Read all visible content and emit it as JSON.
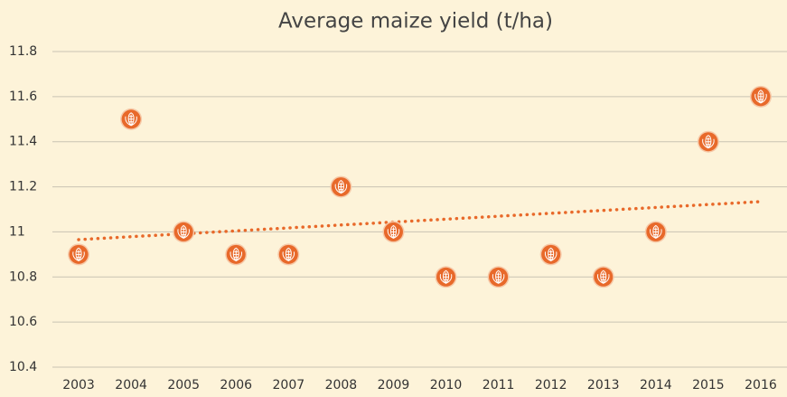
{
  "chart_data": {
    "type": "scatter",
    "title": "Average maize yield (t/ha)",
    "categories": [
      "2003",
      "2004",
      "2005",
      "2006",
      "2007",
      "2008",
      "2009",
      "2010",
      "2011",
      "2012",
      "2013",
      "2014",
      "2015",
      "2016"
    ],
    "values": [
      10.9,
      11.5,
      11.0,
      10.9,
      10.9,
      11.2,
      11.0,
      10.8,
      10.8,
      10.9,
      10.8,
      11.0,
      11.4,
      11.6
    ],
    "color": "#e8692a",
    "ylim": [
      10.4,
      11.8
    ],
    "yticks": [
      10.4,
      10.6,
      10.8,
      11,
      11.2,
      11.4,
      11.6,
      11.8
    ],
    "grid": true,
    "trendline": {
      "type": "linear",
      "style": "dotted",
      "color": "#e8692a"
    }
  }
}
